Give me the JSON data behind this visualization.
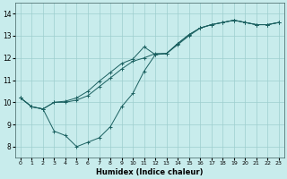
{
  "xlabel": "Humidex (Indice chaleur)",
  "background_color": "#c8ecec",
  "grid_color": "#9ecece",
  "line_color": "#1a6060",
  "xlim": [
    -0.5,
    23.5
  ],
  "ylim": [
    7.5,
    14.5
  ],
  "xticks": [
    0,
    1,
    2,
    3,
    4,
    5,
    6,
    7,
    8,
    9,
    10,
    11,
    12,
    13,
    14,
    15,
    16,
    17,
    18,
    19,
    20,
    21,
    22,
    23
  ],
  "yticks": [
    8,
    9,
    10,
    11,
    12,
    13,
    14
  ],
  "line1_x": [
    0,
    1,
    2,
    3,
    4,
    5,
    6,
    7,
    8,
    9,
    10,
    11,
    12,
    13,
    14,
    15,
    16,
    17,
    18,
    19,
    20,
    21,
    22,
    23
  ],
  "line1_y": [
    10.2,
    9.8,
    9.7,
    10.0,
    10.0,
    10.1,
    10.3,
    10.7,
    11.1,
    11.5,
    11.85,
    12.0,
    12.2,
    12.2,
    12.6,
    13.0,
    13.35,
    13.5,
    13.6,
    13.7,
    13.6,
    13.5,
    13.5,
    13.6
  ],
  "line2_x": [
    0,
    1,
    2,
    3,
    4,
    5,
    6,
    7,
    8,
    9,
    10,
    11,
    12,
    13,
    14,
    15,
    16,
    17,
    18,
    19,
    20,
    21,
    22,
    23
  ],
  "line2_y": [
    10.2,
    9.8,
    9.7,
    10.0,
    10.05,
    10.2,
    10.5,
    10.95,
    11.35,
    11.75,
    11.95,
    12.5,
    12.15,
    12.2,
    12.65,
    13.05,
    13.35,
    13.5,
    13.6,
    13.7,
    13.6,
    13.5,
    13.5,
    13.6
  ],
  "line3_x": [
    0,
    1,
    2,
    3,
    4,
    5,
    6,
    7,
    8,
    9,
    10,
    11,
    12,
    13,
    14,
    15,
    16,
    17,
    18,
    19,
    20,
    21,
    22,
    23
  ],
  "line3_y": [
    10.2,
    9.8,
    9.7,
    8.7,
    8.5,
    8.0,
    8.2,
    8.4,
    8.9,
    9.8,
    10.4,
    11.4,
    12.15,
    12.2,
    12.65,
    13.05,
    13.35,
    13.5,
    13.6,
    13.7,
    13.6,
    13.5,
    13.5,
    13.6
  ]
}
